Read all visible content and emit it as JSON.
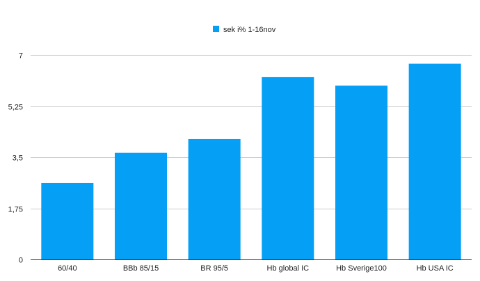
{
  "chart_data": {
    "type": "bar",
    "categories": [
      "60/40",
      "BBb 85/15",
      "BR 95/5",
      "Hb global IC",
      "Hb Sverige100",
      "Hb USA IC"
    ],
    "series": [
      {
        "name": "sek i% 1-16nov",
        "color": "#05a0f5",
        "values": [
          2.62,
          3.65,
          4.12,
          6.24,
          5.95,
          6.7
        ]
      }
    ],
    "ylim": [
      0,
      7
    ],
    "yticks": [
      0,
      1.75,
      3.5,
      5.25,
      7
    ],
    "ytick_labels": [
      "0",
      "1,75",
      "3,5",
      "5,25",
      "7"
    ],
    "grid": true,
    "legend_position": "top-center",
    "xlabel": "",
    "ylabel": ""
  }
}
